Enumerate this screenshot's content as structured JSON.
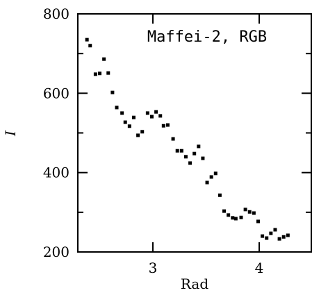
{
  "chart_data": {
    "type": "scatter",
    "title": "Maffei-2, RGB",
    "xlabel": "Rad",
    "ylabel": "I",
    "x": [
      2.38,
      2.41,
      2.46,
      2.5,
      2.54,
      2.58,
      2.62,
      2.66,
      2.71,
      2.74,
      2.78,
      2.82,
      2.86,
      2.9,
      2.95,
      2.99,
      3.03,
      3.07,
      3.1,
      3.14,
      3.19,
      3.23,
      3.27,
      3.31,
      3.35,
      3.39,
      3.43,
      3.47,
      3.51,
      3.55,
      3.59,
      3.63,
      3.67,
      3.71,
      3.75,
      3.78,
      3.83,
      3.87,
      3.91,
      3.95,
      3.99,
      4.03,
      4.07,
      4.11,
      4.15,
      4.19,
      4.23,
      4.27
    ],
    "values": [
      735,
      720,
      648,
      650,
      686,
      651,
      602,
      564,
      550,
      527,
      517,
      539,
      494,
      503,
      550,
      541,
      553,
      543,
      518,
      520,
      485,
      455,
      455,
      440,
      424,
      448,
      466,
      436,
      375,
      389,
      398,
      343,
      303,
      293,
      286,
      284,
      287,
      307,
      301,
      298,
      277,
      240,
      235,
      247,
      256,
      233,
      238,
      242
    ],
    "color": "#000000",
    "xlim": [
      2.294,
      4.49
    ],
    "ylim": [
      200,
      800
    ],
    "xticks": [
      3,
      4
    ],
    "yticks": [
      200,
      400,
      600,
      800
    ]
  }
}
